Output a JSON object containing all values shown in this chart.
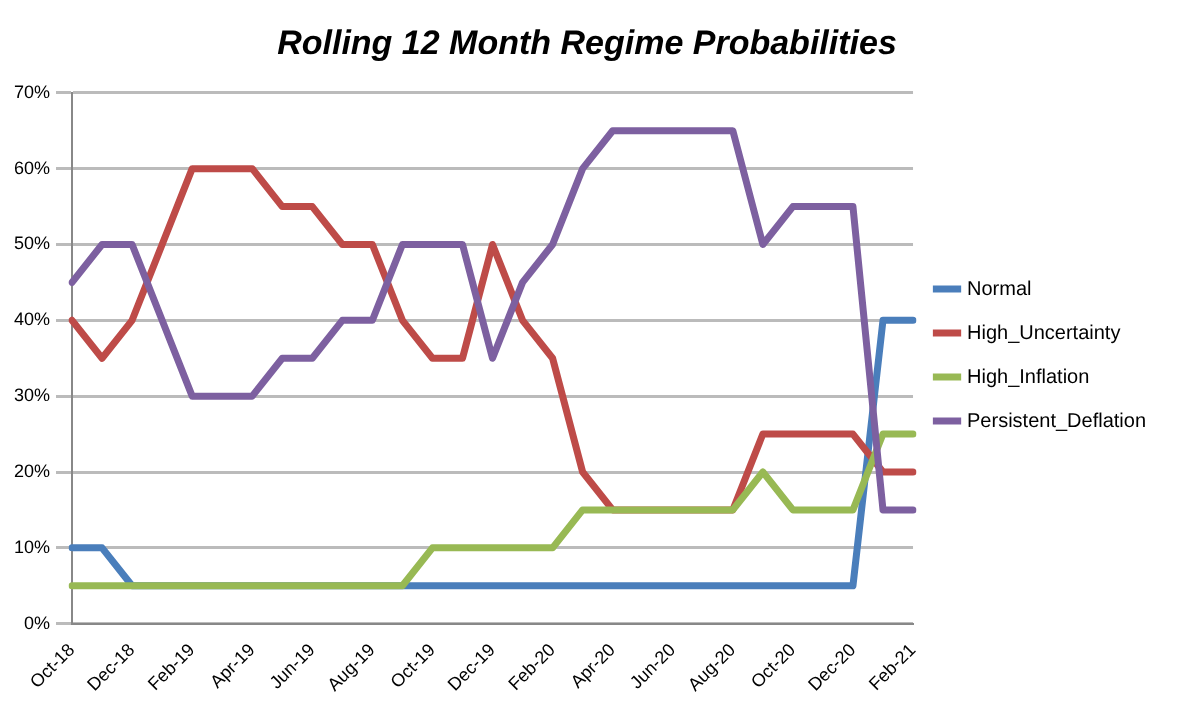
{
  "chart_data": {
    "type": "line",
    "title": "Rolling 12 Month Regime Probabilities",
    "categories": [
      "Oct-18",
      null,
      "Dec-18",
      null,
      "Feb-19",
      null,
      "Apr-19",
      null,
      "Jun-19",
      null,
      "Aug-19",
      null,
      "Oct-19",
      null,
      "Dec-19",
      null,
      "Feb-20",
      null,
      "Apr-20",
      null,
      "Jun-20",
      null,
      "Aug-20",
      null,
      "Oct-20",
      null,
      "Dec-20",
      null,
      "Feb-21"
    ],
    "series": [
      {
        "name": "Normal",
        "color": "#4a7ebb",
        "values": [
          10,
          10,
          5,
          5,
          5,
          5,
          5,
          5,
          5,
          5,
          5,
          5,
          5,
          5,
          5,
          5,
          5,
          5,
          5,
          5,
          5,
          5,
          5,
          5,
          5,
          5,
          5,
          40,
          40
        ]
      },
      {
        "name": "High_Uncertainty",
        "color": "#be4b48",
        "values": [
          40,
          35,
          40,
          50,
          60,
          60,
          60,
          55,
          55,
          50,
          50,
          40,
          35,
          35,
          50,
          40,
          35,
          20,
          15,
          15,
          15,
          15,
          15,
          25,
          25,
          25,
          25,
          20,
          20
        ]
      },
      {
        "name": "High_Inflation",
        "color": "#98b954",
        "values": [
          5,
          5,
          5,
          5,
          5,
          5,
          5,
          5,
          5,
          5,
          5,
          5,
          10,
          10,
          10,
          10,
          10,
          15,
          15,
          15,
          15,
          15,
          15,
          20,
          15,
          15,
          15,
          25,
          25
        ]
      },
      {
        "name": "Persistent_Deflation",
        "color": "#7d60a0",
        "values": [
          45,
          50,
          50,
          40,
          30,
          30,
          30,
          35,
          35,
          40,
          40,
          50,
          50,
          50,
          35,
          45,
          50,
          60,
          65,
          65,
          65,
          65,
          65,
          50,
          55,
          55,
          55,
          15,
          15
        ]
      }
    ],
    "ylim": [
      0,
      70
    ],
    "yticks": [
      {
        "value": 0,
        "label": "0%"
      },
      {
        "value": 10,
        "label": "10%"
      },
      {
        "value": 20,
        "label": "20%"
      },
      {
        "value": 30,
        "label": "30%"
      },
      {
        "value": 40,
        "label": "40%"
      },
      {
        "value": 50,
        "label": "50%"
      },
      {
        "value": 60,
        "label": "60%"
      },
      {
        "value": 70,
        "label": "70%"
      }
    ],
    "grid": "y",
    "legend": "right",
    "marker": "none",
    "line_style": "solid"
  }
}
